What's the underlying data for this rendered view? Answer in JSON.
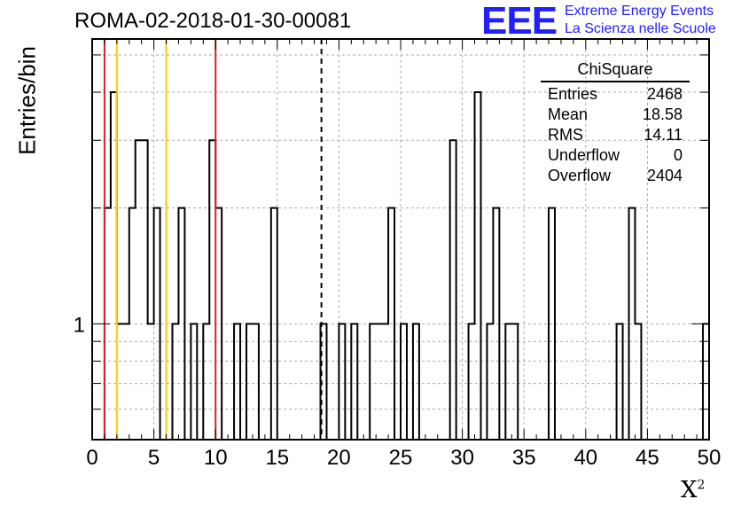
{
  "title": "ROMA-02-2018-01-30-00081",
  "logo": {
    "mark": "EEE",
    "line1": "Extreme Energy Events",
    "line2": "La Scienza nelle Scuole",
    "color": "#1f1fff"
  },
  "chart_data": {
    "type": "histogram",
    "ylabel": "Entries/bin",
    "xlabel_base": "X",
    "xlabel_sup": "2",
    "xlim": [
      0,
      50
    ],
    "ylim": [
      0.5,
      5.5
    ],
    "yscale": "log",
    "y_tick_labels": [
      "1"
    ],
    "x_ticks": [
      0,
      5,
      10,
      15,
      20,
      25,
      30,
      35,
      40,
      45,
      50
    ],
    "grid": true,
    "bin_width": 0.5,
    "bin_starts": [
      1.0,
      1.5,
      2.0,
      2.5,
      3.0,
      3.5,
      4.0,
      4.5,
      5.0,
      5.5,
      6.0,
      6.5,
      7.0,
      7.5,
      8.0,
      8.5,
      9.0,
      9.5,
      10.0,
      10.5,
      11.0,
      11.5,
      12.0,
      12.5,
      13.0,
      13.5,
      14.0,
      14.5,
      15.0,
      15.5,
      16.0,
      16.5,
      17.0,
      17.5,
      18.0,
      18.5,
      19.0,
      19.5,
      20.0,
      20.5,
      21.0,
      21.5,
      22.0,
      22.5,
      23.0,
      23.5,
      24.0,
      24.5,
      25.0,
      25.5,
      26.0,
      26.5,
      27.0,
      27.5,
      28.0,
      28.5,
      29.0,
      29.5,
      30.0,
      30.5,
      31.0,
      31.5,
      32.0,
      32.5,
      33.0,
      33.5,
      34.0,
      34.5,
      35.0,
      35.5,
      36.0,
      36.5,
      37.0,
      37.5,
      38.0,
      38.5,
      39.0,
      39.5,
      40.0,
      40.5,
      41.0,
      41.5,
      42.0,
      42.5,
      43.0,
      43.5,
      44.0,
      44.5,
      45.0,
      45.5,
      46.0,
      46.5,
      47.0,
      47.5,
      48.0,
      48.5,
      49.0,
      49.5
    ],
    "counts": [
      2,
      4,
      1,
      1,
      2,
      3,
      3,
      1,
      2,
      0,
      0,
      1,
      2,
      0,
      1,
      0,
      1,
      3,
      2,
      0,
      0,
      1,
      0,
      1,
      1,
      0,
      0,
      2,
      0,
      0,
      0,
      0,
      0,
      0,
      0,
      1,
      0,
      0,
      1,
      0,
      1,
      0,
      0,
      1,
      1,
      1,
      2,
      0,
      1,
      0,
      1,
      0,
      0,
      0,
      0,
      0,
      3,
      0,
      0,
      1,
      4,
      0,
      1,
      2,
      0,
      1,
      1,
      0,
      0,
      0,
      0,
      0,
      2,
      0,
      0,
      0,
      0,
      0,
      0,
      0,
      0,
      0,
      0,
      1,
      0,
      2,
      1,
      0,
      0,
      0,
      0,
      0,
      0,
      0,
      0,
      0,
      0,
      1
    ],
    "marker_lines": [
      {
        "x": 1.0,
        "color": "#dd2222"
      },
      {
        "x": 10.0,
        "color": "#dd2222"
      },
      {
        "x": 2.0,
        "color": "#ffcc00"
      },
      {
        "x": 6.0,
        "color": "#ffcc00"
      }
    ],
    "mean_line": {
      "x": 18.58,
      "style": "dashed"
    },
    "stats": {
      "name": "ChiSquare",
      "rows": [
        {
          "label": "Entries",
          "value": "2468"
        },
        {
          "label": "Mean",
          "value": "18.58"
        },
        {
          "label": "RMS",
          "value": "14.11"
        },
        {
          "label": "Underflow",
          "value": "0"
        },
        {
          "label": "Overflow",
          "value": "2404"
        }
      ]
    }
  }
}
